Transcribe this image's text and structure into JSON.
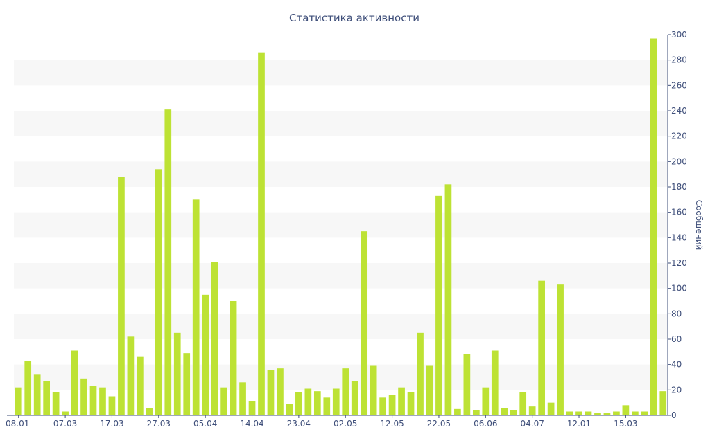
{
  "chart_data": {
    "type": "bar",
    "title": "Статистика активности",
    "ylabel": "Сообщений",
    "xlabel": "",
    "ylim": [
      0,
      300
    ],
    "y_ticks": [
      0,
      20,
      40,
      60,
      80,
      100,
      120,
      140,
      160,
      180,
      200,
      220,
      240,
      260,
      280,
      300
    ],
    "y_axis_side": "right",
    "bar_color": "#bde234",
    "band_color": "#f7f7f7",
    "axis_color": "#3f4f7a",
    "x_tick_labels": [
      {
        "index": 0,
        "label": "08.01"
      },
      {
        "index": 5,
        "label": "07.03"
      },
      {
        "index": 10,
        "label": "17.03"
      },
      {
        "index": 15,
        "label": "27.03"
      },
      {
        "index": 20,
        "label": "05.04"
      },
      {
        "index": 25,
        "label": "14.04"
      },
      {
        "index": 30,
        "label": "23.04"
      },
      {
        "index": 35,
        "label": "02.05"
      },
      {
        "index": 40,
        "label": "12.05"
      },
      {
        "index": 45,
        "label": "22.05"
      },
      {
        "index": 50,
        "label": "06.06"
      },
      {
        "index": 55,
        "label": "04.07"
      },
      {
        "index": 60,
        "label": "12.01"
      },
      {
        "index": 65,
        "label": "15.03"
      }
    ],
    "values": [
      22,
      43,
      32,
      27,
      18,
      3,
      51,
      29,
      23,
      22,
      15,
      188,
      62,
      46,
      6,
      194,
      241,
      65,
      49,
      170,
      95,
      121,
      22,
      90,
      26,
      11,
      286,
      36,
      37,
      9,
      18,
      21,
      19,
      14,
      21,
      37,
      27,
      145,
      39,
      14,
      16,
      22,
      18,
      65,
      39,
      173,
      182,
      5,
      48,
      4,
      22,
      51,
      6,
      4,
      18,
      7,
      106,
      10,
      103,
      3,
      3,
      3,
      2,
      2,
      3,
      8,
      3,
      3,
      297,
      19
    ]
  }
}
